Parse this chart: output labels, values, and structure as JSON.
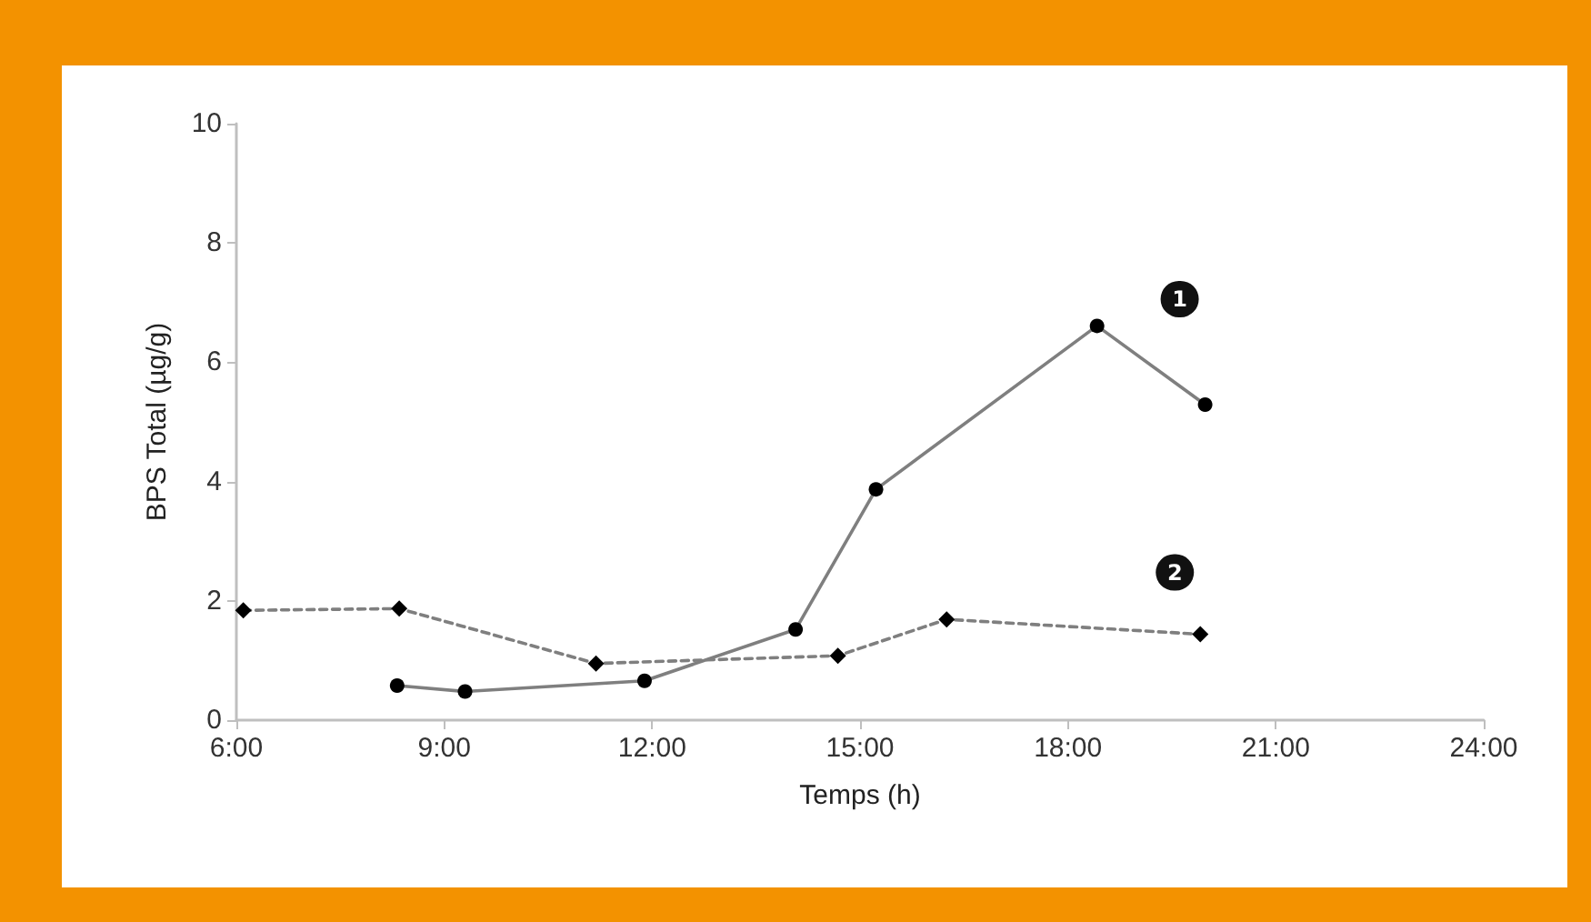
{
  "chart_data": {
    "type": "line",
    "xlabel": "Temps (h)",
    "ylabel": "BPS Total (µg/g)",
    "xlim": [
      6,
      24
    ],
    "xticks": [
      {
        "value": 6,
        "label": "6:00"
      },
      {
        "value": 9,
        "label": "9:00"
      },
      {
        "value": 12,
        "label": "12:00"
      },
      {
        "value": 15,
        "label": "15:00"
      },
      {
        "value": 18,
        "label": "18:00"
      },
      {
        "value": 21,
        "label": "21:00"
      },
      {
        "value": 24,
        "label": "24:00"
      }
    ],
    "ylim": [
      0,
      10
    ],
    "yticks": [
      0,
      2,
      4,
      6,
      8,
      10
    ],
    "grid": false,
    "legend": false,
    "series": [
      {
        "name": "1",
        "color": "#7f7f7f",
        "marker": "circle",
        "line_style": "solid",
        "x": [
          8.32,
          9.3,
          11.89,
          14.07,
          15.23,
          18.42,
          19.98
        ],
        "values": [
          0.58,
          0.48,
          0.66,
          1.52,
          3.87,
          6.61,
          5.29
        ]
      },
      {
        "name": "2",
        "color": "#7f7f7f",
        "marker": "diamond",
        "line_style": "dashed",
        "x": [
          6.1,
          8.35,
          11.19,
          14.68,
          16.25,
          19.91
        ],
        "values": [
          1.84,
          1.87,
          0.95,
          1.08,
          1.69,
          1.44
        ]
      }
    ]
  }
}
